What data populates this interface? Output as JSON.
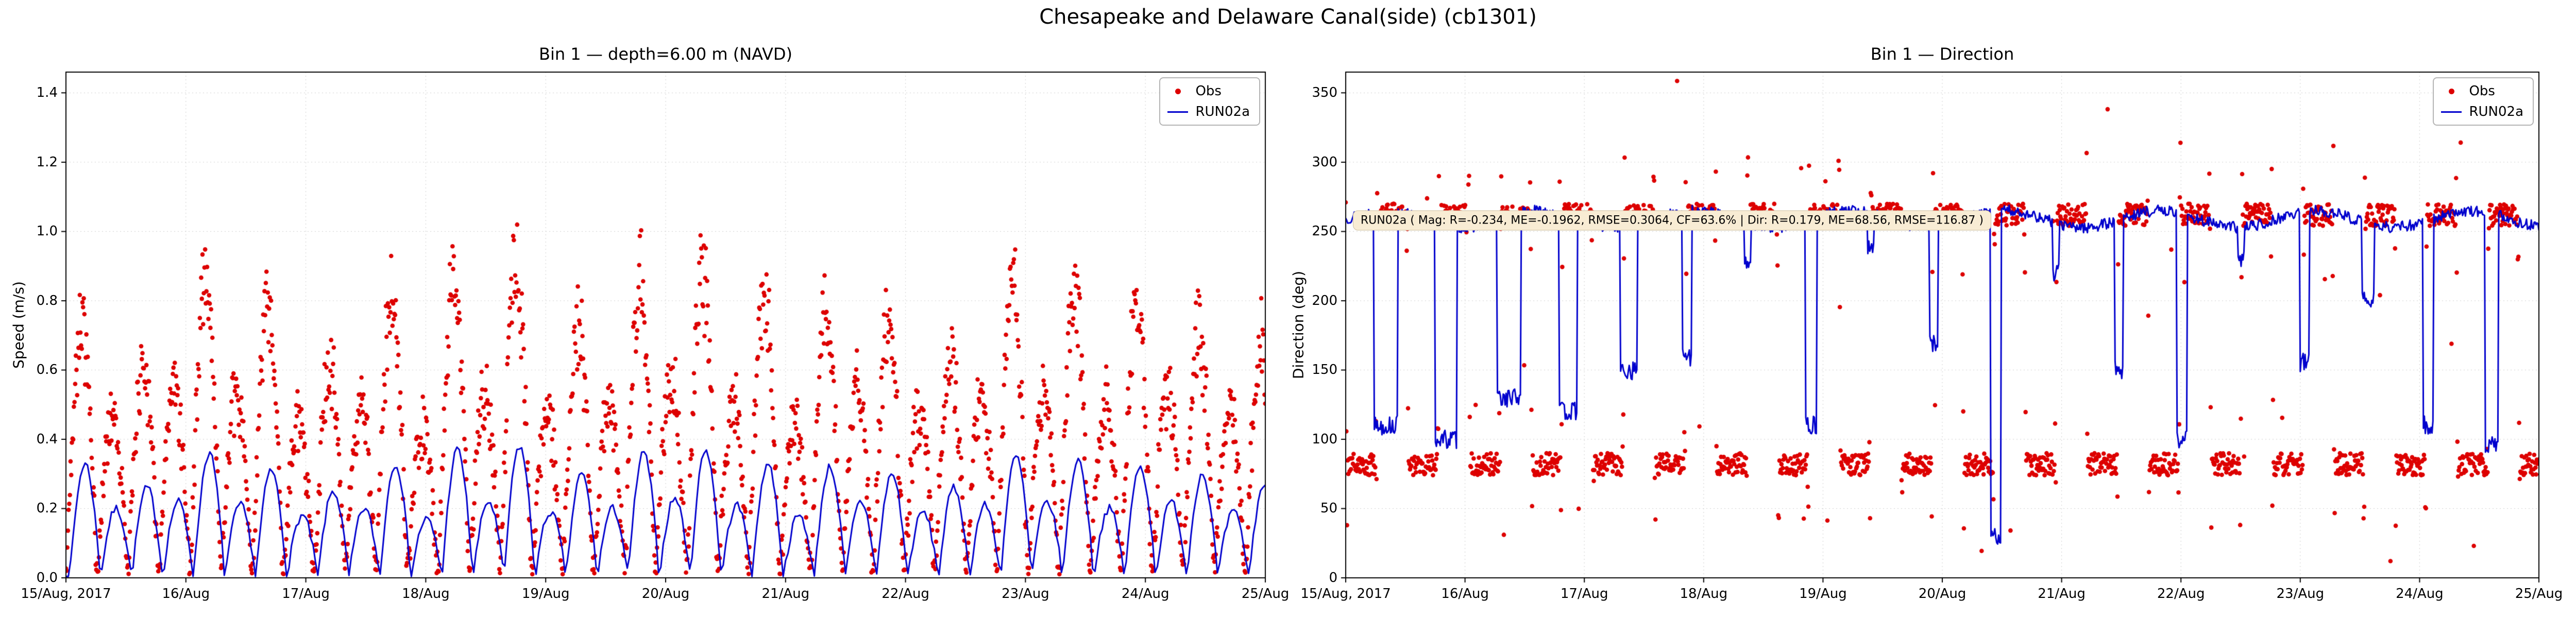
{
  "figure": {
    "title": "Chesapeake and Delaware Canal(side) (cb1301)"
  },
  "colors": {
    "obs": "#dd0000",
    "model": "#0000cd",
    "grid": "#cccccc",
    "spine": "#000000",
    "tick": "#000000",
    "annotation_bg": "#f8ecd4",
    "annotation_border": "#cfc0a0"
  },
  "legend": {
    "obs_label": "Obs",
    "model_label": "RUN02a",
    "position": "upper right"
  },
  "x_axis": {
    "range_days": [
      0,
      10
    ],
    "tick_values": [
      0,
      1,
      2,
      3,
      4,
      5,
      6,
      7,
      8,
      9,
      10
    ],
    "tick_labels": [
      "15/Aug, 2017",
      "16/Aug",
      "17/Aug",
      "18/Aug",
      "19/Aug",
      "20/Aug",
      "21/Aug",
      "22/Aug",
      "23/Aug",
      "24/Aug",
      "25/Aug"
    ]
  },
  "chart_data": [
    {
      "type": "scatter+line",
      "title": "Bin 1 — depth=6.00 m (NAVD)",
      "ylabel": "Speed (m/s)",
      "ylim": [
        0,
        1.46
      ],
      "y_ticks": [
        0.0,
        0.2,
        0.4,
        0.6,
        0.8,
        1.0,
        1.2,
        1.4
      ],
      "y_tick_labels": [
        "0.0",
        "0.2",
        "0.4",
        "0.6",
        "0.8",
        "1.0",
        "1.2",
        "1.4"
      ],
      "grid": true,
      "legend": [
        "Obs",
        "RUN02a"
      ],
      "series": [
        {
          "name": "Obs",
          "style": "scatter",
          "color": "#dd0000",
          "tidal_period_days": 0.5175,
          "sample_step_days": 0.0055,
          "peak_envelope_mps": [
            0.74,
            0.48,
            0.62,
            0.55,
            0.86,
            0.52,
            0.78,
            0.45,
            0.6,
            0.5,
            0.8,
            0.42,
            0.88,
            0.55,
            0.9,
            0.48,
            0.72,
            0.5,
            0.86,
            0.58,
            0.88,
            0.52,
            0.8,
            0.45,
            0.78,
            0.55,
            0.74,
            0.48,
            0.64,
            0.52,
            0.85,
            0.55,
            0.82,
            0.5,
            0.78,
            0.55,
            0.72,
            0.48,
            0.66,
            0.5
          ],
          "noise_mps": 0.05,
          "seed": 42
        },
        {
          "name": "RUN02a",
          "style": "line",
          "color": "#0000cd",
          "tidal_period_days": 0.5175,
          "sample_step_days": 0.02,
          "lag_days": 0.03,
          "peak_envelope_mps": [
            0.33,
            0.2,
            0.26,
            0.22,
            0.36,
            0.21,
            0.31,
            0.18,
            0.25,
            0.2,
            0.33,
            0.17,
            0.37,
            0.22,
            0.38,
            0.19,
            0.3,
            0.2,
            0.36,
            0.23,
            0.37,
            0.21,
            0.33,
            0.18,
            0.32,
            0.22,
            0.3,
            0.19,
            0.26,
            0.21,
            0.35,
            0.22,
            0.34,
            0.2,
            0.32,
            0.22,
            0.3,
            0.19,
            0.27,
            0.2
          ],
          "noise_mps": 0.012,
          "seed": 7
        }
      ]
    },
    {
      "type": "scatter+line",
      "title": "Bin 1 — Direction",
      "ylabel": "Direction (deg)",
      "ylim": [
        0,
        365
      ],
      "y_ticks": [
        0,
        50,
        100,
        150,
        200,
        250,
        300,
        350
      ],
      "y_tick_labels": [
        "0",
        "50",
        "100",
        "150",
        "200",
        "250",
        "300",
        "350"
      ],
      "grid": true,
      "legend": [
        "Obs",
        "RUN02a"
      ],
      "annotation": {
        "text": "RUN02a ( Mag: R=-0.234, ME=-0.1962, RMSE=0.3064, CF=63.6% | Dir: R=0.179, ME=68.56, RMSE=116.87 )",
        "x_days": 0.06,
        "y_deg": 258
      },
      "series": [
        {
          "name": "Obs",
          "style": "scatter",
          "color": "#dd0000",
          "tidal_period_days": 0.5175,
          "sample_step_days": 0.0055,
          "ebb_direction_deg": 82,
          "flood_direction_deg": 262,
          "spread_deg": 8,
          "transition_spread_deg": 50,
          "outlier_rate": 0.02,
          "seed": 99
        },
        {
          "name": "RUN02a",
          "style": "line",
          "color": "#0000cd",
          "tidal_period_days": 0.5175,
          "sample_step_days": 0.008,
          "base_direction_deg": 259,
          "noise_deg": 4,
          "wobble_deg": 6,
          "wobble_period_days": 1.3,
          "dip_phase_start": 0.45,
          "dip_levels_deg": [
            110,
            100,
            130,
            120,
            150,
            160,
            230,
            110,
            240,
            170,
            30,
            220,
            150,
            100,
            230,
            155,
            200,
            110,
            95,
            120
          ],
          "dip_fracs": [
            0.4,
            0.35,
            0.38,
            0.3,
            0.28,
            0.15,
            0.12,
            0.18,
            0.1,
            0.14,
            0.16,
            0.1,
            0.14,
            0.18,
            0.1,
            0.15,
            0.2,
            0.16,
            0.22,
            0.15
          ],
          "seed": 13
        }
      ]
    }
  ]
}
